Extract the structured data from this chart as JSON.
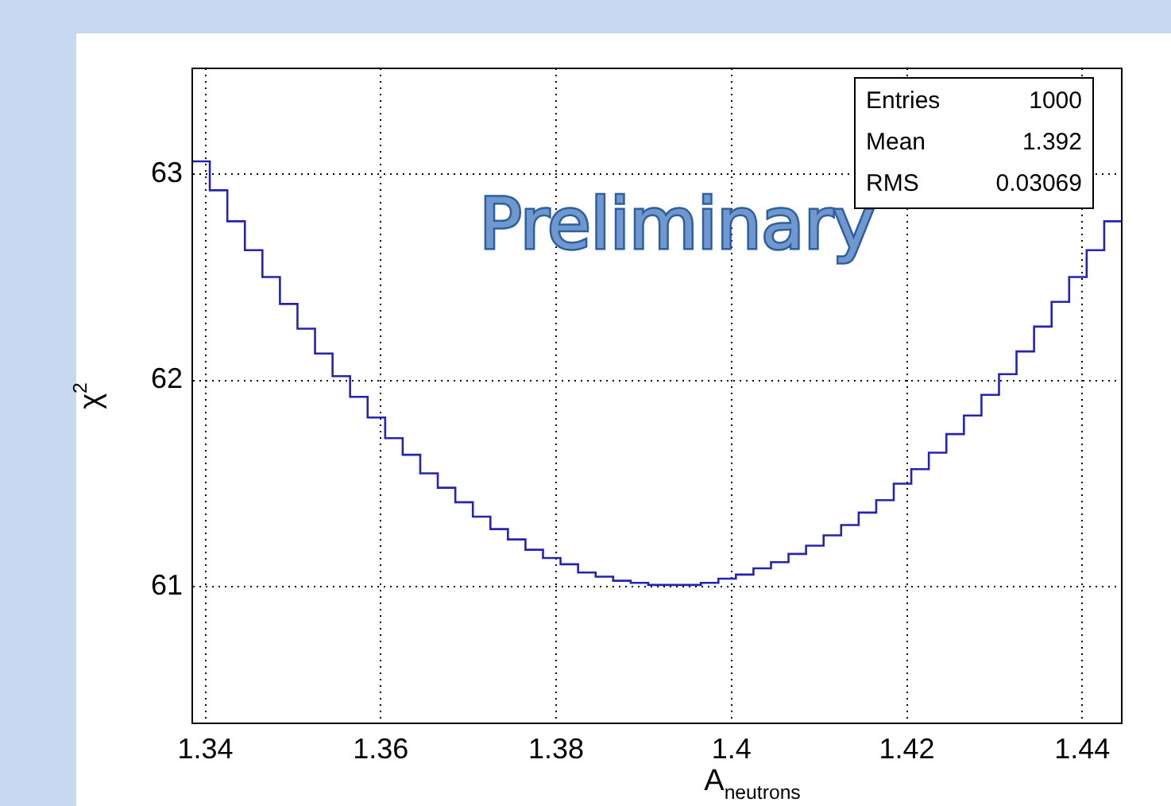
{
  "chart_data": {
    "type": "histogram",
    "xlabel": "A$_{neutrons}$",
    "ylabel": "χ$^{2}$",
    "bins": [
      1.3385,
      1.3405,
      1.3425,
      1.3445,
      1.3465,
      1.3485,
      1.3505,
      1.3525,
      1.3545,
      1.3565,
      1.3585,
      1.3605,
      1.3625,
      1.3645,
      1.3665,
      1.3685,
      1.3705,
      1.3725,
      1.3745,
      1.3765,
      1.3785,
      1.3805,
      1.3825,
      1.3845,
      1.3865,
      1.3885,
      1.3905,
      1.3925,
      1.3945,
      1.3965,
      1.3985,
      1.4005,
      1.4025,
      1.4045,
      1.4065,
      1.4085,
      1.4105,
      1.4125,
      1.4145,
      1.4165,
      1.4185,
      1.4205,
      1.4225,
      1.4245,
      1.4265,
      1.4285,
      1.4305,
      1.4325,
      1.4345,
      1.4365,
      1.4385,
      1.4405,
      1.4425,
      1.4445
    ],
    "values": [
      63.06,
      62.92,
      62.77,
      62.63,
      62.5,
      62.37,
      62.25,
      62.13,
      62.02,
      61.92,
      61.82,
      61.72,
      61.64,
      61.55,
      61.48,
      61.41,
      61.34,
      61.28,
      61.23,
      61.18,
      61.14,
      61.11,
      61.07,
      61.05,
      61.03,
      61.02,
      61.01,
      61.01,
      61.01,
      61.02,
      61.04,
      61.06,
      61.09,
      61.12,
      61.16,
      61.2,
      61.25,
      61.3,
      61.36,
      61.42,
      61.5,
      61.57,
      61.65,
      61.74,
      61.83,
      61.93,
      62.03,
      62.14,
      62.26,
      62.38,
      62.5,
      62.63,
      62.77
    ],
    "color": "#2424b0",
    "xlim": [
      1.3385,
      1.4445
    ],
    "xticks": [
      1.34,
      1.36,
      1.38,
      1.4,
      1.42,
      1.44
    ],
    "ylim": [
      60.34,
      63.51
    ],
    "yticks": [
      61,
      62,
      63
    ],
    "grid": true,
    "annotations": [
      "Preliminary",
      "Entries 1000",
      "Mean 1.392",
      "RMS 0.03069"
    ]
  }
}
